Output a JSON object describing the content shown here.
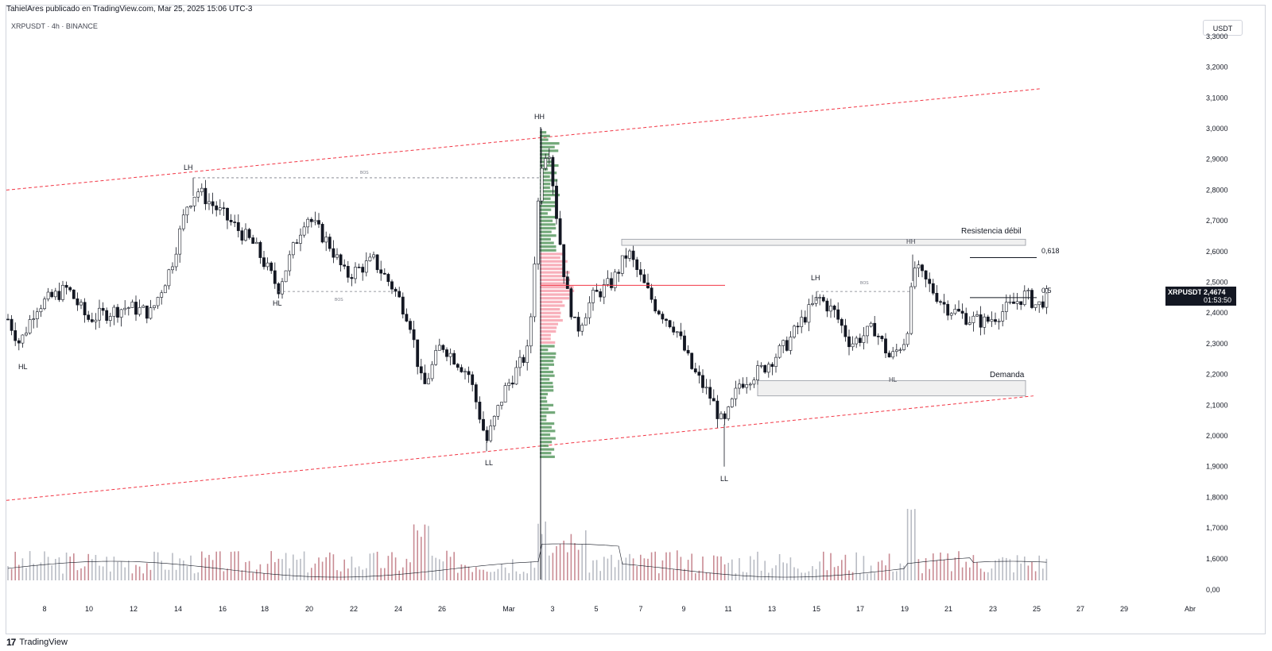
{
  "header": {
    "published_line": "TahielAres publicado en TradingView.com, Mar 25, 2025 15:06 UTC-3",
    "symbol_line": "XRPUSDT · 4h · BINANCE",
    "currency_button": "USDT"
  },
  "footer": {
    "logo_text": "TradingView",
    "logo_mark": "17"
  },
  "last_price": {
    "symbol": "XRPUSDT",
    "price": "2,4674",
    "countdown": "01:53:50"
  },
  "colors": {
    "up": "#ffffff",
    "down": "#131722",
    "trendline": "#f23645",
    "profile_green": "#5b9a63",
    "profile_red": "#f7a1ae",
    "volume_up": "#b9bcc4",
    "volume_down": "#c98c94"
  },
  "chart_data": {
    "type": "candlestick",
    "price_axis_labels": [
      "3,3000",
      "3,2000",
      "3,1000",
      "3,0000",
      "2,9000",
      "2,8000",
      "2,7000",
      "2,6000",
      "2,5000",
      "2,4000",
      "2,3000",
      "2,2000",
      "2,1000",
      "2,0000",
      "1,9000",
      "1,8000",
      "1,7000",
      "1,6000",
      "0,00"
    ],
    "time_axis_labels": [
      "8",
      "10",
      "12",
      "14",
      "16",
      "18",
      "20",
      "22",
      "24",
      "26",
      "Mar",
      "3",
      "5",
      "7",
      "9",
      "11",
      "13",
      "15",
      "17",
      "19",
      "21",
      "23",
      "25",
      "27",
      "29",
      "Abr"
    ],
    "ylim": [
      1.55,
      3.3
    ],
    "key_points": [
      {
        "date": "Feb 7",
        "low": 2.3,
        "label": "HL"
      },
      {
        "date": "Feb 14",
        "high": 2.84,
        "label": "LH"
      },
      {
        "date": "Feb 18",
        "low": 2.47,
        "label": "HL"
      },
      {
        "date": "Feb 28",
        "low": 1.95,
        "label": "LL"
      },
      {
        "date": "Mar 2",
        "high": 3.0,
        "label": "HH"
      },
      {
        "date": "Mar 10",
        "low": 1.9,
        "label": "LL"
      },
      {
        "date": "Mar 15",
        "high": 2.47,
        "label": "LH"
      },
      {
        "date": "Mar 19",
        "high": 2.59
      }
    ],
    "annotations": [
      {
        "text": "Resistencia débil",
        "zone": [
          2.62,
          2.64
        ],
        "zone_label": "HH"
      },
      {
        "text": "Demanda",
        "zone": [
          2.13,
          2.18
        ],
        "zone_label": "HL"
      },
      {
        "text": "0,618",
        "level": 2.58
      },
      {
        "text": "0,5",
        "level": 2.45
      },
      {
        "text": "BOS",
        "level": 2.84
      },
      {
        "text": "BOS",
        "level": 2.47
      },
      {
        "text": "BOS",
        "level": 2.47
      }
    ],
    "channel": {
      "upper": [
        [
          2.8,
          3.13
        ]
      ],
      "lower": [
        [
          1.79,
          2.13
        ]
      ]
    },
    "volume_profile": {
      "poc": 2.49
    }
  },
  "labels": {
    "hl1": "HL",
    "lh1": "LH",
    "hl2": "HL",
    "ll1": "LL",
    "hh1": "HH",
    "ll2": "LL",
    "lh2": "LH",
    "resistencia": "Resistencia débil",
    "hh_zone": "HH",
    "demanda": "Demanda",
    "hl_zone": "HL",
    "fib618": "0,618",
    "fib05": "0,5",
    "bos1": "BOS",
    "bos2": "BOS",
    "bos3": "BOS"
  }
}
